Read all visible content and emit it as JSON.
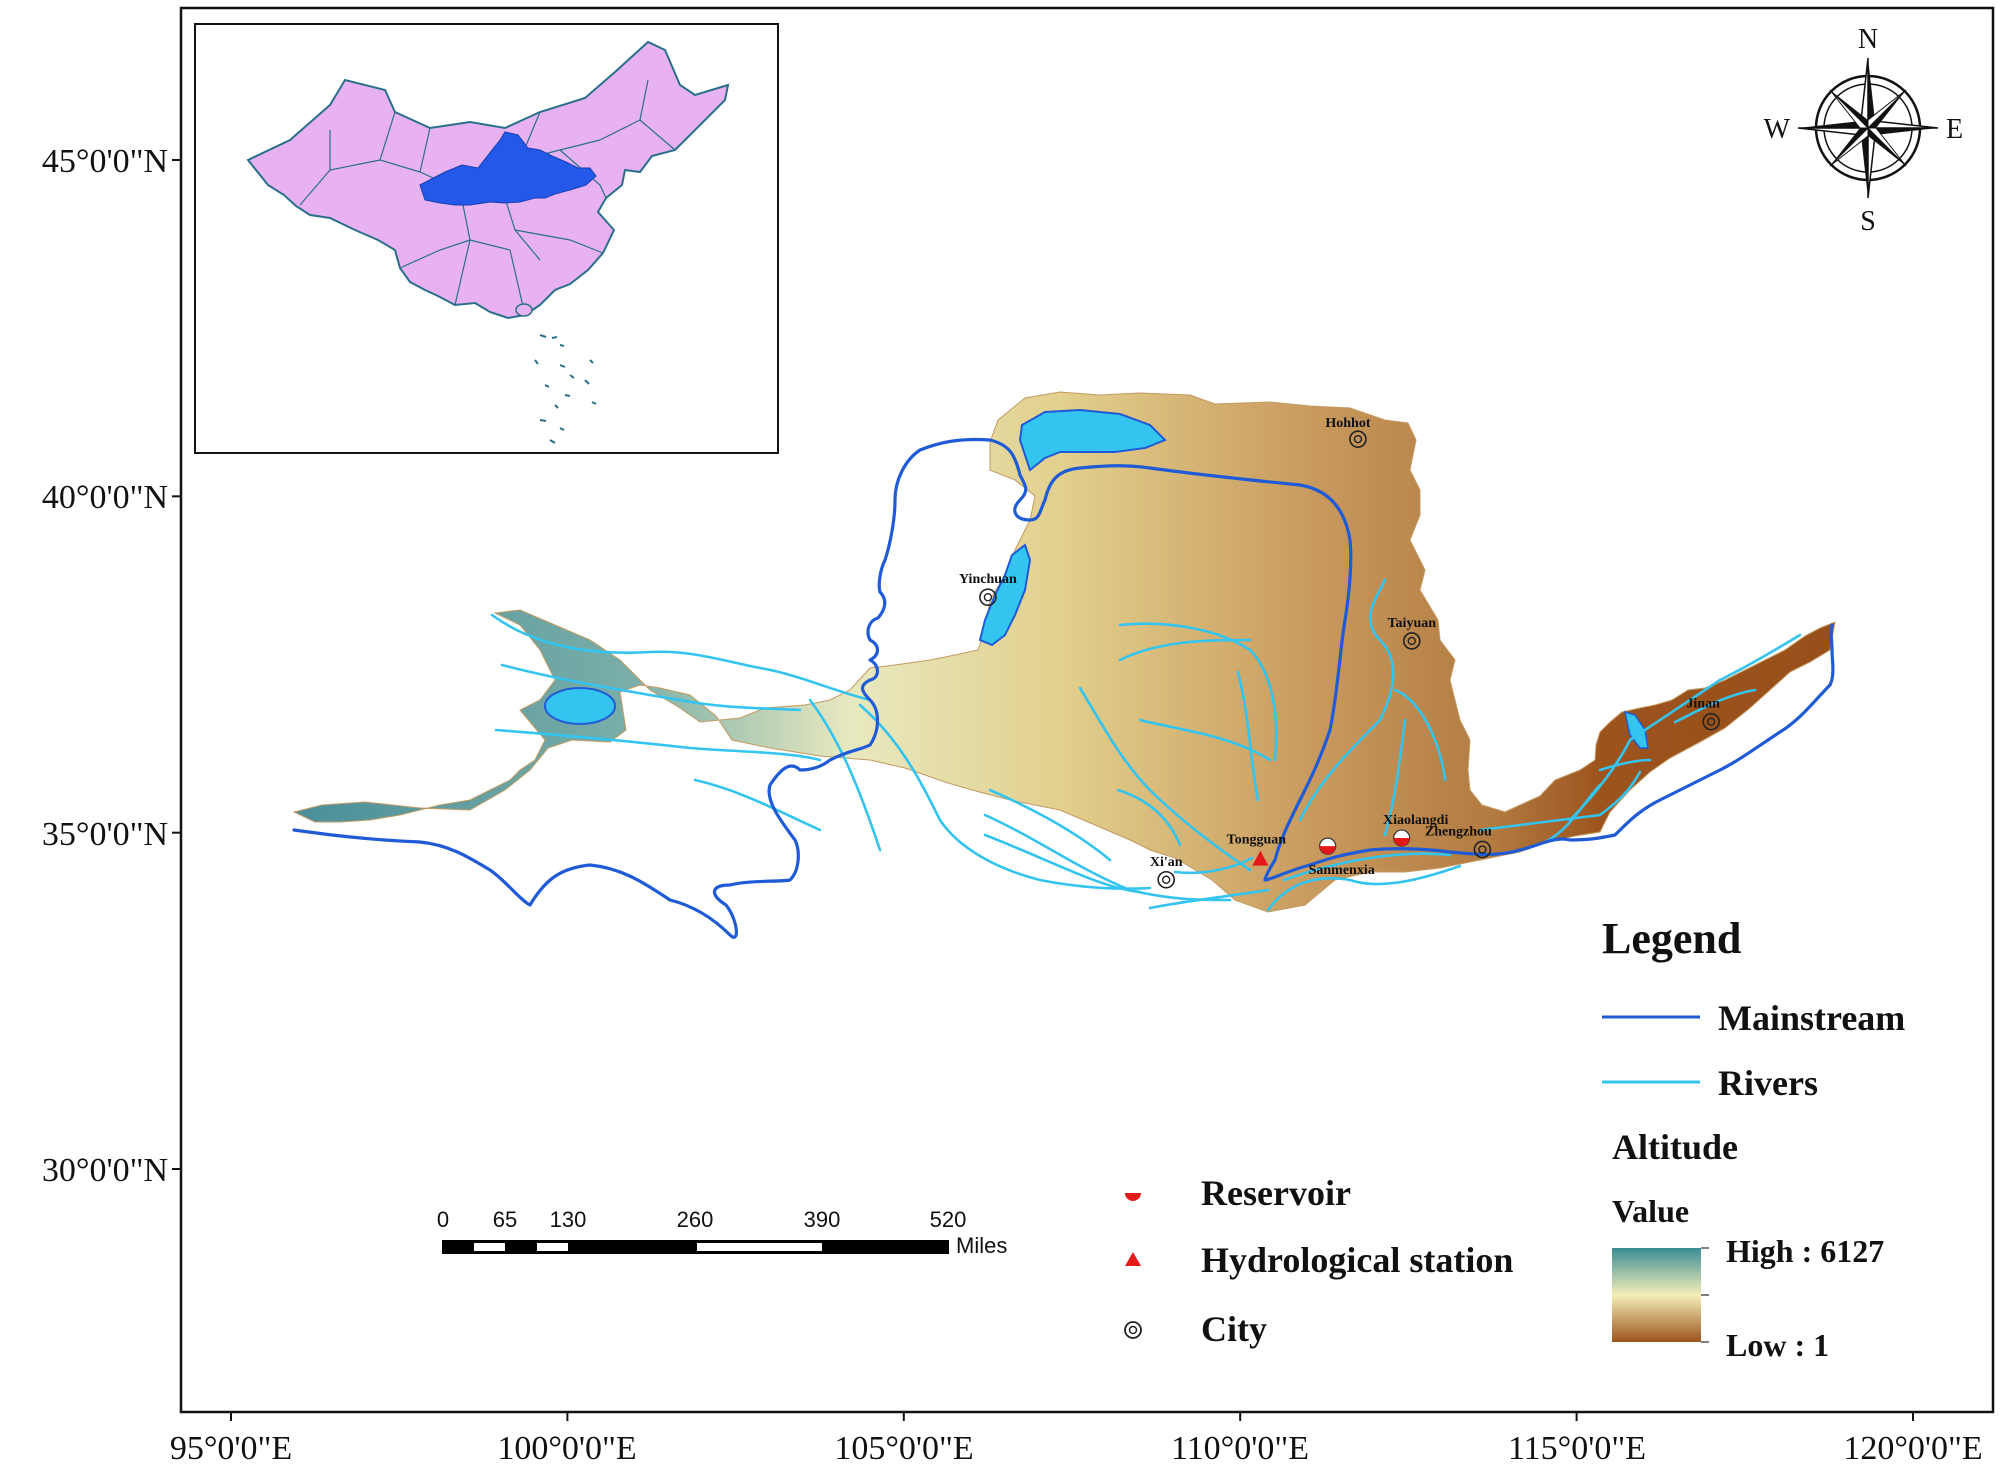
{
  "axes": {
    "y_ticks": [
      {
        "label": "45°0'0\"N",
        "value": 45
      },
      {
        "label": "40°0'0\"N",
        "value": 40
      },
      {
        "label": "35°0'0\"N",
        "value": 35
      },
      {
        "label": "30°0'0\"N",
        "value": 30
      }
    ],
    "x_ticks": [
      {
        "label": "95°0'0\"E",
        "value": 95
      },
      {
        "label": "100°0'0\"E",
        "value": 100
      },
      {
        "label": "105°0'0\"E",
        "value": 105
      },
      {
        "label": "110°0'0\"E",
        "value": 110
      },
      {
        "label": "115°0'0\"E",
        "value": 115
      },
      {
        "label": "120°0'0\"E",
        "value": 120
      }
    ]
  },
  "cities": [
    {
      "name": "Hohhot",
      "lon": 111.75,
      "lat": 40.85
    },
    {
      "name": "Yinchuan",
      "lon": 106.25,
      "lat": 38.5
    },
    {
      "name": "Taiyuan",
      "lon": 112.55,
      "lat": 37.85
    },
    {
      "name": "Jinan",
      "lon": 117.0,
      "lat": 36.65
    },
    {
      "name": "Xi'an",
      "lon": 108.9,
      "lat": 34.3
    },
    {
      "name": "Zhengzhou",
      "lon": 113.6,
      "lat": 34.75
    }
  ],
  "stations": [
    {
      "name": "Tongguan",
      "type": "hydrological",
      "lon": 110.3,
      "lat": 34.6
    }
  ],
  "reservoirs": [
    {
      "name": "Sanmenxia",
      "lon": 111.3,
      "lat": 34.8
    },
    {
      "name": "Xiaolangdi",
      "lon": 112.4,
      "lat": 34.92
    }
  ],
  "compass": {
    "n": "N",
    "s": "S",
    "e": "E",
    "w": "W"
  },
  "legend": {
    "title": "Legend",
    "mainstream": "Mainstream",
    "rivers": "Rivers",
    "altitude": "Altitude",
    "value": "Value",
    "high": "High : 6127",
    "low": "Low : 1",
    "reservoir": "Reservoir",
    "station": "Hydrological station",
    "city": "City"
  },
  "scale_bar": {
    "labels": [
      "0",
      "65",
      "130",
      "260",
      "390",
      "520"
    ],
    "unit": "Miles"
  },
  "colors": {
    "mainstream": "#1f5bd6",
    "rivers": "#33c4f0",
    "altitude_high": "#3b8c95",
    "altitude_mid": "#f4efb8",
    "altitude_low": "#9c531c",
    "china_fill": "#e8b2f2",
    "basin_inset": "#2358e8",
    "marker_red": "#e41a1a"
  }
}
